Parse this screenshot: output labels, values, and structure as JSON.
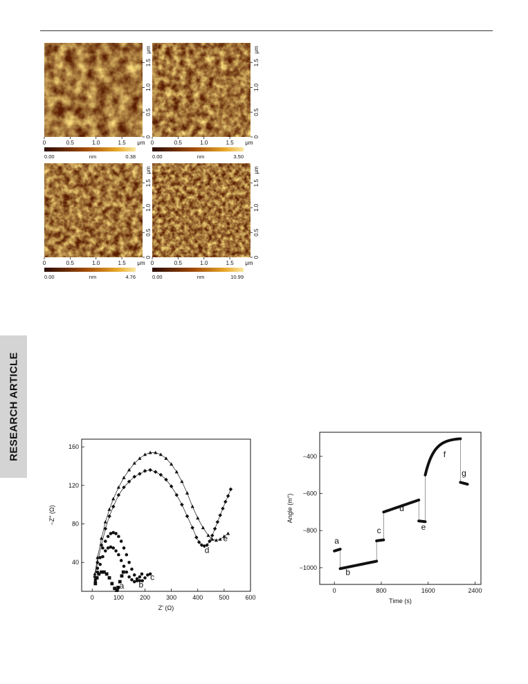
{
  "section_tab": "RESEARCH ARTICLE",
  "afm_panels": [
    {
      "um_label": "μm",
      "x_ticks": [
        "0",
        "0.5",
        "1.0",
        "1.5"
      ],
      "y_ticks": [
        "0",
        "0.5",
        "1.0",
        "1.5"
      ],
      "scale_min": "0.00",
      "scale_unit": "nm",
      "scale_max": "0.38"
    },
    {
      "um_label": "μm",
      "x_ticks": [
        "0",
        "0.5",
        "1.0",
        "1.5"
      ],
      "y_ticks": [
        "0",
        "0.5",
        "1.0",
        "1.5"
      ],
      "scale_min": "0.00",
      "scale_unit": "nm",
      "scale_max": "3.50"
    },
    {
      "um_label": "μm",
      "x_ticks": [
        "0",
        "0.5",
        "1.0",
        "1.5"
      ],
      "y_ticks": [
        "0",
        "0.5",
        "1.0",
        "1.5"
      ],
      "scale_min": "0.00",
      "scale_unit": "nm",
      "scale_max": "4.76"
    },
    {
      "um_label": "μm",
      "x_ticks": [
        "0",
        "0.5",
        "1.0",
        "1.5"
      ],
      "y_ticks": [
        "0",
        "0.5",
        "1.0",
        "1.5"
      ],
      "scale_min": "0.00",
      "scale_unit": "nm",
      "scale_max": "10.99"
    }
  ],
  "chart_data": [
    {
      "type": "scatter",
      "xlabel": "Z′ (Ω)",
      "ylabel": "−Z″ (Ω)",
      "xlim": [
        -40,
        600
      ],
      "ylim": [
        10,
        168
      ],
      "x_ticks": [
        0,
        100,
        200,
        300,
        400,
        500,
        600
      ],
      "y_ticks": [
        40,
        80,
        120,
        160
      ],
      "series": [
        {
          "label": "a",
          "points": [
            [
              12,
              18
            ],
            [
              18,
              24
            ],
            [
              25,
              28
            ],
            [
              35,
              30
            ],
            [
              45,
              30
            ],
            [
              55,
              28
            ],
            [
              65,
              24
            ],
            [
              75,
              18
            ],
            [
              85,
              13
            ],
            [
              93,
              11
            ],
            [
              98,
              14
            ],
            [
              105,
              20
            ],
            [
              112,
              26
            ],
            [
              118,
              30
            ]
          ]
        },
        {
          "label": "b",
          "points": [
            [
              12,
              20
            ],
            [
              20,
              30
            ],
            [
              30,
              38
            ],
            [
              40,
              46
            ],
            [
              50,
              52
            ],
            [
              60,
              55
            ],
            [
              70,
              56
            ],
            [
              80,
              55
            ],
            [
              90,
              52
            ],
            [
              100,
              48
            ],
            [
              110,
              42
            ],
            [
              120,
              36
            ],
            [
              130,
              30
            ],
            [
              140,
              25
            ],
            [
              150,
              22
            ],
            [
              160,
              20
            ],
            [
              170,
              21
            ],
            [
              180,
              25
            ],
            [
              188,
              28
            ]
          ]
        },
        {
          "label": "c",
          "points": [
            [
              12,
              22
            ],
            [
              20,
              34
            ],
            [
              30,
              45
            ],
            [
              40,
              55
            ],
            [
              50,
              62
            ],
            [
              60,
              67
            ],
            [
              70,
              70
            ],
            [
              80,
              71
            ],
            [
              90,
              70
            ],
            [
              100,
              67
            ],
            [
              110,
              62
            ],
            [
              120,
              55
            ],
            [
              130,
              48
            ],
            [
              140,
              40
            ],
            [
              150,
              33
            ],
            [
              160,
              27
            ],
            [
              170,
              23
            ],
            [
              180,
              21
            ],
            [
              190,
              21
            ],
            [
              200,
              24
            ],
            [
              210,
              27
            ],
            [
              220,
              28
            ]
          ]
        },
        {
          "label": "d",
          "points": [
            [
              10,
              25
            ],
            [
              20,
              40
            ],
            [
              35,
              58
            ],
            [
              50,
              75
            ],
            [
              65,
              88
            ],
            [
              80,
              98
            ],
            [
              100,
              110
            ],
            [
              120,
              118
            ],
            [
              140,
              124
            ],
            [
              160,
              129
            ],
            [
              180,
              132
            ],
            [
              200,
              135
            ],
            [
              220,
              136
            ],
            [
              240,
              134
            ],
            [
              260,
              131
            ],
            [
              280,
              126
            ],
            [
              300,
              119
            ],
            [
              320,
              110
            ],
            [
              340,
              100
            ],
            [
              360,
              88
            ],
            [
              380,
              76
            ],
            [
              395,
              66
            ],
            [
              405,
              61
            ],
            [
              415,
              58
            ],
            [
              425,
              57
            ],
            [
              435,
              58
            ],
            [
              445,
              62
            ],
            [
              455,
              68
            ],
            [
              465,
              75
            ],
            [
              475,
              82
            ],
            [
              485,
              89
            ],
            [
              495,
              96
            ],
            [
              505,
              103
            ],
            [
              515,
              109
            ],
            [
              525,
              116
            ]
          ]
        },
        {
          "label": "e",
          "points": [
            [
              10,
              28
            ],
            [
              20,
              45
            ],
            [
              35,
              65
            ],
            [
              50,
              82
            ],
            [
              65,
              95
            ],
            [
              80,
              106
            ],
            [
              100,
              118
            ],
            [
              120,
              128
            ],
            [
              140,
              136
            ],
            [
              160,
              143
            ],
            [
              180,
              148
            ],
            [
              200,
              152
            ],
            [
              220,
              154
            ],
            [
              240,
              154
            ],
            [
              260,
              152
            ],
            [
              280,
              148
            ],
            [
              300,
              142
            ],
            [
              320,
              134
            ],
            [
              340,
              124
            ],
            [
              360,
              112
            ],
            [
              380,
              98
            ],
            [
              400,
              86
            ],
            [
              420,
              76
            ],
            [
              440,
              68
            ],
            [
              455,
              64
            ],
            [
              470,
              63
            ],
            [
              485,
              64
            ],
            [
              500,
              67
            ],
            [
              515,
              70
            ]
          ]
        }
      ],
      "labels": [
        {
          "text": "a",
          "x": 112,
          "y": 13
        },
        {
          "text": "b",
          "x": 185,
          "y": 14
        },
        {
          "text": "c",
          "x": 228,
          "y": 22
        },
        {
          "text": "d",
          "x": 435,
          "y": 50
        },
        {
          "text": "e",
          "x": 505,
          "y": 62
        }
      ]
    },
    {
      "type": "line",
      "xlabel": "Time (s)",
      "ylabel": "Angle (m°)",
      "xlim": [
        -250,
        2500
      ],
      "ylim": [
        -1090,
        -270
      ],
      "x_ticks": [
        0,
        800,
        1600,
        2400
      ],
      "y_ticks": [
        -1000,
        -800,
        -600,
        -400
      ],
      "segments": [
        {
          "label": "a",
          "t0": 0,
          "t1": 100,
          "v0": -910,
          "v1": -900
        },
        {
          "label": "b",
          "t0": 100,
          "t1": 720,
          "v0": -1005,
          "v1": -965
        },
        {
          "label": "c",
          "t0": 720,
          "t1": 840,
          "v0": -855,
          "v1": -850
        },
        {
          "label": "d",
          "t0": 840,
          "t1": 1440,
          "v0": -700,
          "v1": -635
        },
        {
          "label": "e",
          "t0": 1440,
          "t1": 1550,
          "v0": -748,
          "v1": -752
        },
        {
          "label": "f",
          "t0": 1550,
          "t1": 2150,
          "v0": -500,
          "v1": -305,
          "curve": true
        },
        {
          "label": "g",
          "t0": 2150,
          "t1": 2270,
          "v0": -540,
          "v1": -550
        }
      ],
      "labels": [
        {
          "text": "a",
          "x": 40,
          "y": -870
        },
        {
          "text": "b",
          "x": 230,
          "y": -1040
        },
        {
          "text": "c",
          "x": 760,
          "y": -815
        },
        {
          "text": "d",
          "x": 1150,
          "y": -695
        },
        {
          "text": "e",
          "x": 1520,
          "y": -795
        },
        {
          "text": "f",
          "x": 1880,
          "y": -405
        },
        {
          "text": "g",
          "x": 2210,
          "y": -505
        }
      ]
    }
  ]
}
